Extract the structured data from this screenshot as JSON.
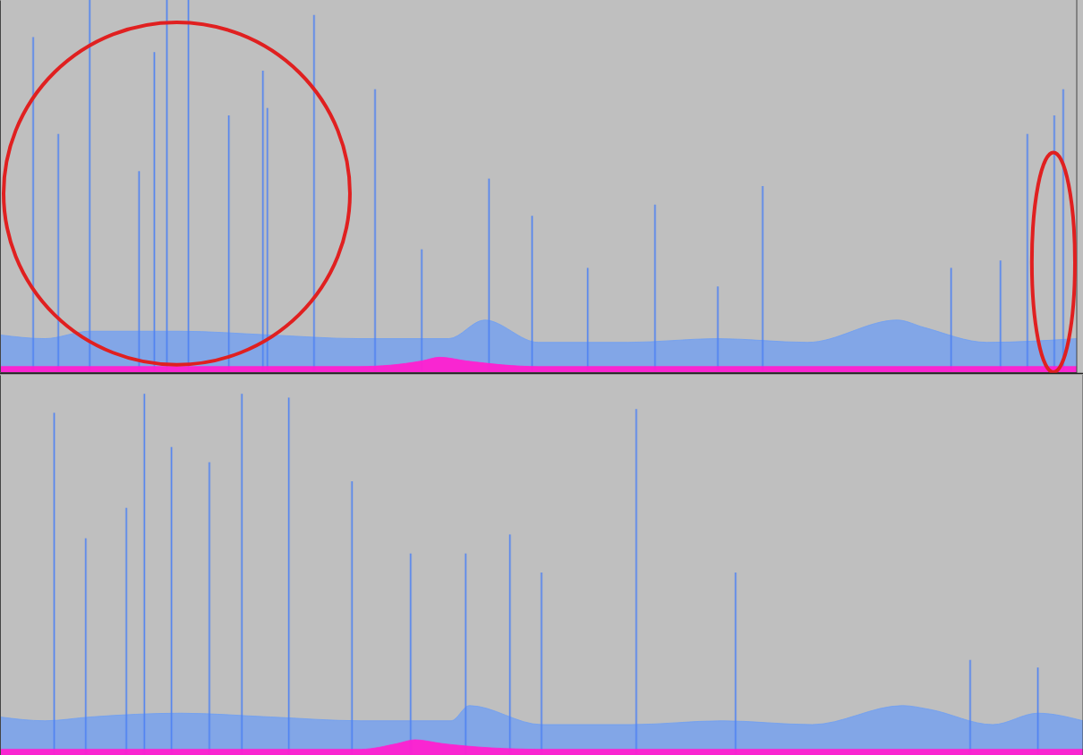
{
  "chart_data": [
    {
      "type": "spectrogram",
      "xlim": [
        0,
        1200
      ],
      "ylim": [
        0,
        100
      ],
      "tick_labels": false,
      "series": [
        {
          "type": "streak",
          "color": "#4f82f2",
          "x": [
            37,
            65,
            100,
            155,
            172,
            186,
            210,
            255,
            293,
            298,
            350,
            418,
            470,
            545,
            593,
            655,
            730,
            800,
            850,
            1060,
            1115,
            1145,
            1175,
            1185
          ],
          "values": [
            90,
            64,
            100,
            54,
            86,
            100,
            100,
            69,
            81,
            71,
            96,
            76,
            33,
            52,
            42,
            28,
            45,
            23,
            50,
            28,
            30,
            64,
            69,
            76
          ]
        },
        {
          "type": "area",
          "color": "#6d9ef4",
          "x": [
            0,
            50,
            100,
            200,
            300,
            400,
            500,
            540,
            600,
            700,
            800,
            900,
            1000,
            1030,
            1100,
            1200
          ],
          "values": [
            10,
            9,
            11,
            11,
            10,
            9,
            9,
            14,
            8,
            8,
            9,
            8,
            14,
            12,
            8,
            9
          ]
        },
        {
          "type": "area",
          "color": "#ff1fd0",
          "x": [
            0,
            200,
            400,
            470,
            490,
            520,
            600,
            800,
            1000,
            1200
          ],
          "values": [
            1.5,
            1.5,
            1.5,
            3,
            4,
            3,
            1.5,
            1.5,
            1.5,
            1.5
          ]
        }
      ],
      "highlights": [
        {
          "color": "#e02020",
          "x": [
            4,
            390
          ],
          "y": [
            2,
            94
          ]
        },
        {
          "color": "#e02020",
          "x": [
            1150,
            1198
          ],
          "y": [
            0,
            59
          ]
        }
      ]
    },
    {
      "type": "spectrogram",
      "xlim": [
        0,
        1200
      ],
      "ylim": [
        0,
        100
      ],
      "tick_labels": false,
      "series": [
        {
          "type": "streak",
          "color": "#4f82f2",
          "x": [
            60,
            95,
            140,
            160,
            190,
            232,
            268,
            320,
            390,
            455,
            516,
            565,
            600,
            705,
            815,
            1075,
            1150
          ],
          "values": [
            90,
            57,
            65,
            95,
            81,
            77,
            95,
            94,
            72,
            53,
            53,
            58,
            48,
            91,
            48,
            25,
            23
          ]
        },
        {
          "type": "area",
          "color": "#6d9ef4",
          "x": [
            0,
            50,
            100,
            200,
            300,
            400,
            500,
            520,
            600,
            700,
            800,
            900,
            1000,
            1030,
            1100,
            1150,
            1200
          ],
          "values": [
            10,
            9,
            10,
            11,
            10,
            9,
            9,
            13,
            8,
            8,
            9,
            8,
            13,
            12,
            8,
            11,
            9
          ]
        },
        {
          "type": "area",
          "color": "#ff1fd0",
          "x": [
            0,
            200,
            400,
            440,
            460,
            490,
            600,
            800,
            1000,
            1200
          ],
          "values": [
            1.5,
            1.5,
            1.5,
            3,
            4,
            3,
            1.5,
            1.5,
            1.5,
            1.5
          ]
        }
      ]
    }
  ]
}
